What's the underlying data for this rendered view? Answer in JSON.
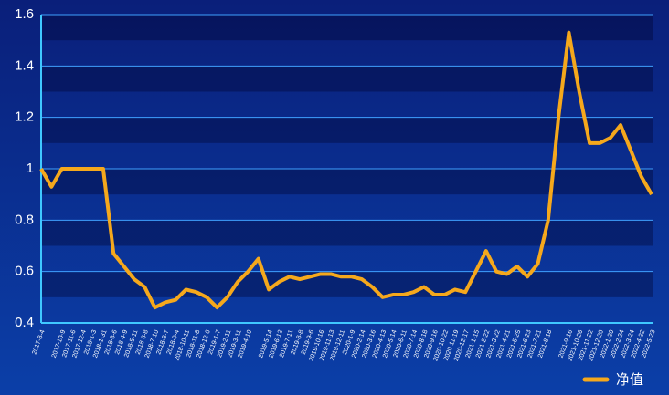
{
  "chart_data": {
    "type": "line",
    "categories": [
      "2017-8-4",
      null,
      "2017-10-9",
      "2017-11-6",
      "2017-12-4",
      "2018-1-3",
      "2018-1-31",
      "2018-3-6",
      "2018-4-9",
      "2018-5-11",
      "2018-6-8",
      "2018-7-10",
      "2018-8-7",
      "2018-9-4",
      "2018-10-11",
      "2018-11-8",
      "2018-12-6",
      "2019-1-7",
      "2019-2-11",
      "2019-3-11",
      "2019-4-10",
      null,
      "2019-5-14",
      "2019-6-12",
      "2019-7-11",
      "2019-8-8",
      "2019-9-6",
      "2019-10-16",
      "2019-11-13",
      "2019-12-11",
      "2020-1-9",
      "2020-2-14",
      "2020-3-16",
      "2020-4-13",
      "2020-5-14",
      "2020-6-11",
      "2020-7-14",
      "2020-8-18",
      "2020-9-16",
      "2020-10-22",
      "2020-11-19",
      "2020-12-17",
      "2021-1-15",
      "2021-2-22",
      "2021-3-22",
      "2021-4-21",
      "2021-5-25",
      "2021-6-23",
      "2021-7-21",
      "2021-8-18",
      null,
      "2021-9-16",
      "2021-10-26",
      "2021-11-22",
      "2021-12-20",
      "2022-1-20",
      "2022-2-24",
      "2022-3-24",
      "2022-4-22",
      "2022-5-23"
    ],
    "series": [
      {
        "name": "净值",
        "color": "#f5a81c",
        "values": [
          1.0,
          0.93,
          1.0,
          1.0,
          1.0,
          1.0,
          1.0,
          0.67,
          0.62,
          0.57,
          0.54,
          0.46,
          0.48,
          0.49,
          0.53,
          0.52,
          0.5,
          0.46,
          0.5,
          0.56,
          0.6,
          0.65,
          0.53,
          0.56,
          0.58,
          0.57,
          0.58,
          0.59,
          0.59,
          0.58,
          0.58,
          0.57,
          0.54,
          0.5,
          0.51,
          0.51,
          0.52,
          0.54,
          0.51,
          0.51,
          0.53,
          0.52,
          0.6,
          0.68,
          0.6,
          0.59,
          0.62,
          0.58,
          0.63,
          0.8,
          1.2,
          1.53,
          1.3,
          1.1,
          1.1,
          1.12,
          1.17,
          1.07,
          0.97,
          0.9
        ]
      }
    ],
    "ylim": [
      0.4,
      1.6
    ],
    "yticks": [
      0.4,
      0.6,
      0.8,
      1,
      1.2,
      1.4,
      1.6
    ],
    "grid": true,
    "legend": "bottom-right"
  }
}
